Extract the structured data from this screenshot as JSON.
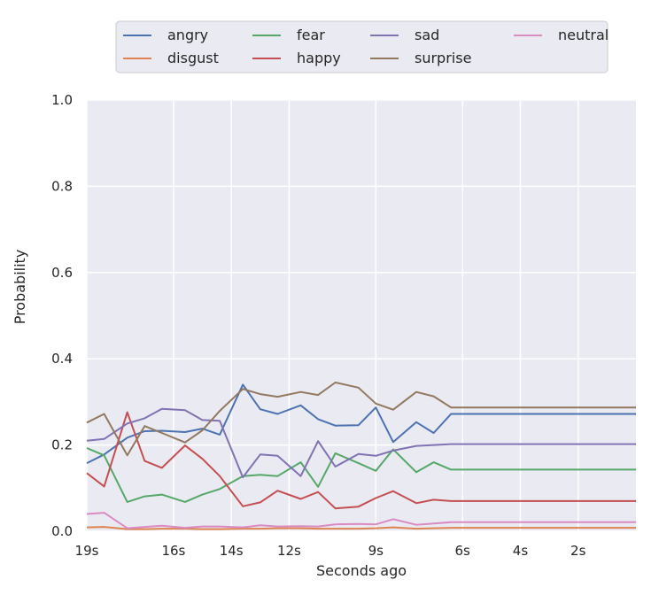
{
  "chart_data": {
    "type": "line",
    "title": "",
    "xlabel": "Seconds ago",
    "ylabel": "Probability",
    "ylim": [
      0,
      1.0
    ],
    "xlim": [
      19,
      0
    ],
    "grid": true,
    "legend_placement": "top-center",
    "x": [
      19,
      18.4,
      17.6,
      17,
      16.4,
      15.6,
      15,
      14.4,
      13.6,
      13,
      12.4,
      11.6,
      11,
      10.4,
      9.6,
      9,
      8.4,
      7.6,
      7,
      6.4,
      5.6,
      5,
      4.4,
      3.6,
      3,
      2.4,
      1.6,
      1,
      0.4,
      0
    ],
    "xticks": [
      19,
      16,
      14,
      12,
      9,
      6,
      4,
      2
    ],
    "xtick_labels": [
      "19s",
      "16s",
      "14s",
      "12s",
      "9s",
      "6s",
      "4s",
      "2s"
    ],
    "yticks": [
      0.0,
      0.2,
      0.4,
      0.6,
      0.8,
      1.0
    ],
    "ytick_labels": [
      "0.0",
      "0.2",
      "0.4",
      "0.6",
      "0.8",
      "1.0"
    ],
    "series": [
      {
        "name": "angry",
        "color": "#4c72b0",
        "values": [
          0.158,
          0.178,
          0.217,
          0.232,
          0.233,
          0.23,
          0.238,
          0.224,
          0.34,
          0.283,
          0.272,
          0.292,
          0.26,
          0.245,
          0.246,
          0.287,
          0.207,
          0.253,
          0.228,
          0.272,
          0.272,
          0.272,
          0.272,
          0.272,
          0.272,
          0.272,
          0.272,
          0.272,
          0.272,
          0.272
        ]
      },
      {
        "name": "disgust",
        "color": "#dd8452",
        "values": [
          0.009,
          0.01,
          0.005,
          0.005,
          0.006,
          0.006,
          0.005,
          0.005,
          0.006,
          0.006,
          0.007,
          0.007,
          0.006,
          0.006,
          0.006,
          0.007,
          0.009,
          0.006,
          0.007,
          0.008,
          0.008,
          0.008,
          0.008,
          0.008,
          0.008,
          0.008,
          0.008,
          0.008,
          0.008,
          0.008
        ]
      },
      {
        "name": "fear",
        "color": "#55a868",
        "values": [
          0.193,
          0.176,
          0.068,
          0.081,
          0.085,
          0.068,
          0.085,
          0.098,
          0.128,
          0.131,
          0.128,
          0.16,
          0.103,
          0.181,
          0.158,
          0.14,
          0.19,
          0.137,
          0.16,
          0.143,
          0.143,
          0.143,
          0.143,
          0.143,
          0.143,
          0.143,
          0.143,
          0.143,
          0.143,
          0.143
        ]
      },
      {
        "name": "happy",
        "color": "#c44e52",
        "values": [
          0.135,
          0.104,
          0.276,
          0.163,
          0.147,
          0.199,
          0.168,
          0.128,
          0.058,
          0.067,
          0.094,
          0.075,
          0.091,
          0.053,
          0.057,
          0.077,
          0.093,
          0.065,
          0.073,
          0.07,
          0.07,
          0.07,
          0.07,
          0.07,
          0.07,
          0.07,
          0.07,
          0.07,
          0.07,
          0.07
        ]
      },
      {
        "name": "sad",
        "color": "#8172b3",
        "values": [
          0.21,
          0.214,
          0.25,
          0.262,
          0.284,
          0.281,
          0.258,
          0.256,
          0.125,
          0.178,
          0.175,
          0.128,
          0.209,
          0.15,
          0.179,
          0.175,
          0.187,
          0.198,
          0.2,
          0.202,
          0.202,
          0.202,
          0.202,
          0.202,
          0.202,
          0.202,
          0.202,
          0.202,
          0.202,
          0.202
        ]
      },
      {
        "name": "surprise",
        "color": "#937860",
        "values": [
          0.252,
          0.272,
          0.176,
          0.244,
          0.228,
          0.206,
          0.234,
          0.279,
          0.33,
          0.318,
          0.312,
          0.323,
          0.316,
          0.345,
          0.333,
          0.296,
          0.282,
          0.323,
          0.313,
          0.287,
          0.287,
          0.287,
          0.287,
          0.287,
          0.287,
          0.287,
          0.287,
          0.287,
          0.287,
          0.287
        ]
      },
      {
        "name": "neutral",
        "color": "#da8bc3",
        "values": [
          0.04,
          0.043,
          0.007,
          0.01,
          0.013,
          0.008,
          0.011,
          0.011,
          0.009,
          0.014,
          0.011,
          0.012,
          0.011,
          0.016,
          0.017,
          0.016,
          0.028,
          0.015,
          0.018,
          0.021,
          0.021,
          0.021,
          0.021,
          0.021,
          0.021,
          0.021,
          0.021,
          0.021,
          0.021,
          0.021
        ]
      }
    ]
  }
}
